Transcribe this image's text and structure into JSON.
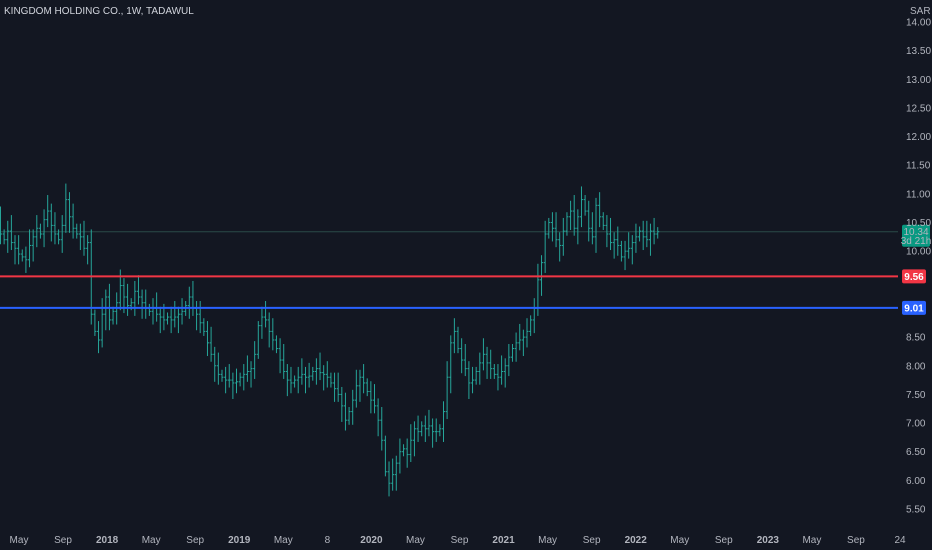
{
  "header": {
    "symbol_line": "KINGDOM HOLDING CO., 1W, TADAWUL",
    "currency": "SAR"
  },
  "chart_data": {
    "type": "bar",
    "title": "KINGDOM HOLDING CO., 1W, TADAWUL",
    "ylabel": "SAR",
    "ylim": [
      5.25,
      14.4
    ],
    "y_ticks": [
      "14.00",
      "13.50",
      "13.00",
      "12.50",
      "12.00",
      "11.50",
      "11.00",
      "10.50",
      "10.00",
      "8.50",
      "8.00",
      "7.50",
      "7.00",
      "6.50",
      "6.00",
      "5.50"
    ],
    "x_ticks": [
      "May",
      "Sep",
      "2018",
      "May",
      "Sep",
      "2019",
      "May",
      "8",
      "2020",
      "May",
      "Sep",
      "2021",
      "May",
      "Sep",
      "2022",
      "May",
      "Sep",
      "2023",
      "May",
      "Sep",
      "24"
    ],
    "x_tick_dates": [
      "2017-05",
      "2017-09",
      "2018-01",
      "2018-05",
      "2018-09",
      "2019-01",
      "2019-05",
      "2019-09",
      "2020-01",
      "2020-05",
      "2020-09",
      "2021-01",
      "2021-05",
      "2021-09",
      "2022-01",
      "2022-05",
      "2022-09",
      "2023-01",
      "2023-05",
      "2023-09",
      "2024-01"
    ],
    "series": [
      {
        "values_close": [
          10.8,
          10.75,
          10.6,
          10.55,
          10.3,
          10.2,
          10.35,
          10.15,
          10.05,
          9.95,
          9.9,
          9.85,
          10.1,
          10.25,
          10.4,
          10.3,
          10.55,
          10.7,
          10.45,
          10.3,
          10.2,
          10.45,
          10.9,
          10.6,
          10.4,
          10.3,
          10.25,
          10.05,
          10.15,
          8.9,
          8.6,
          8.45,
          8.9,
          9.2,
          8.8,
          8.95,
          9.1,
          9.4,
          9.2,
          9.05,
          9.1,
          9.3,
          9.2,
          9.1,
          9.0,
          8.95,
          9.0,
          8.9,
          8.85,
          8.8,
          8.85,
          8.8,
          8.85,
          8.9,
          8.95,
          9.05,
          9.2,
          9.0,
          8.9,
          8.75,
          8.6,
          8.4,
          8.2,
          8.0,
          7.85,
          7.8,
          7.75,
          7.75,
          7.7,
          7.72,
          7.8,
          7.85,
          7.9,
          7.95,
          8.2,
          8.7,
          8.85,
          8.8,
          8.6,
          8.45,
          8.3,
          8.1,
          7.9,
          7.75,
          7.7,
          7.75,
          7.8,
          7.85,
          7.8,
          7.82,
          7.9,
          7.95,
          7.88,
          7.85,
          7.8,
          7.7,
          7.6,
          7.5,
          7.3,
          7.05,
          7.2,
          7.4,
          7.65,
          7.8,
          7.7,
          7.55,
          7.4,
          7.3,
          7.05,
          6.7,
          6.15,
          5.95,
          6.1,
          6.3,
          6.5,
          6.55,
          6.45,
          6.7,
          6.9,
          6.85,
          6.95,
          6.9,
          6.95,
          6.85,
          6.85,
          6.9,
          7.2,
          7.8,
          8.4,
          8.6,
          8.3,
          8.1,
          7.95,
          7.7,
          7.75,
          7.9,
          8.05,
          8.2,
          8.05,
          7.95,
          7.85,
          7.8,
          7.9,
          8.0,
          8.15,
          8.3,
          8.4,
          8.45,
          8.5,
          8.6,
          8.8,
          9.0,
          9.5,
          9.8,
          10.3,
          10.5,
          10.4,
          10.2,
          10.1,
          10.35,
          10.6,
          10.7,
          10.4,
          10.6,
          10.9,
          10.7,
          10.4,
          10.25,
          10.8,
          10.6,
          10.45,
          10.3,
          10.15,
          10.2,
          10.1,
          9.9,
          10.0,
          10.05,
          10.15,
          10.25,
          10.35,
          10.25,
          10.2,
          10.35,
          10.3,
          10.34
        ],
        "weeks_per_year_axis": "2017-02 to 2022-03",
        "last_close": "10.34",
        "countdown": "3d 21h"
      }
    ],
    "horizontal_levels": [
      {
        "value": 9.56,
        "label": "9.56",
        "color": "#f23645"
      },
      {
        "value": 9.01,
        "label": "9.01",
        "color": "#2962ff"
      }
    ],
    "last_price": {
      "value": 10.34,
      "label": "10.34",
      "sublabel": "3d 21h",
      "color": "#089981"
    },
    "colors": {
      "background": "#131722",
      "grid": "#1e2230",
      "bar": "#26a69a",
      "text": "#b2b5be"
    },
    "grid": false,
    "legend": "none"
  }
}
